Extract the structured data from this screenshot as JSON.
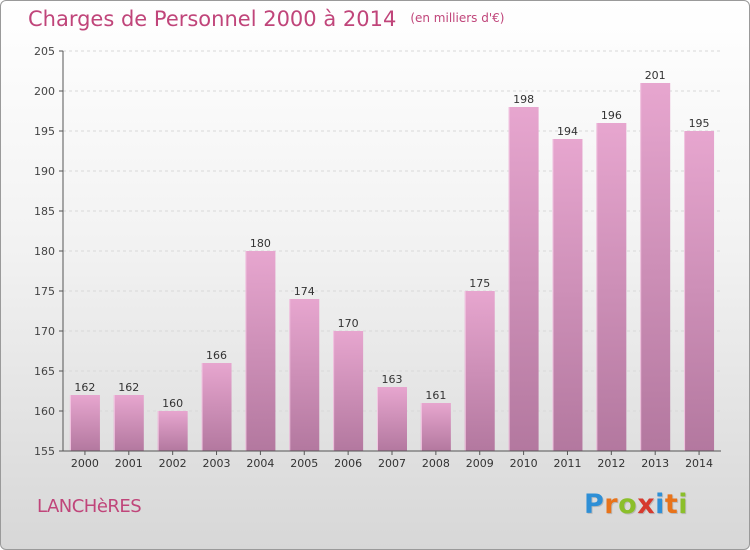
{
  "header": {
    "title": "Charges de Personnel 2000 à 2014",
    "subtitle": "(en milliers d'€)"
  },
  "footer": {
    "town": "LANCHèRES",
    "brand": "Proxiti",
    "brand_colors": [
      "#2e8fd6",
      "#e8731a",
      "#8bbf2a",
      "#d63a2e",
      "#2e8fd6",
      "#e8731a",
      "#8bbf2a"
    ]
  },
  "colors": {
    "bar_light": "#e7a6cf",
    "bar_dark": "#b3789f",
    "accent": "#c0457a",
    "axis": "#555555",
    "grid": "#d8d8d8"
  },
  "chart_data": {
    "type": "bar",
    "categories": [
      "2000",
      "2001",
      "2002",
      "2003",
      "2004",
      "2005",
      "2006",
      "2007",
      "2008",
      "2009",
      "2010",
      "2011",
      "2012",
      "2013",
      "2014"
    ],
    "values": [
      162,
      162,
      160,
      166,
      180,
      174,
      170,
      163,
      161,
      175,
      198,
      194,
      196,
      201,
      195
    ],
    "ylim": [
      155,
      205
    ],
    "yticks": [
      155,
      160,
      165,
      170,
      175,
      180,
      185,
      190,
      195,
      200,
      205
    ],
    "grid": "horizontal dashed",
    "xlabel": "",
    "ylabel": ""
  }
}
